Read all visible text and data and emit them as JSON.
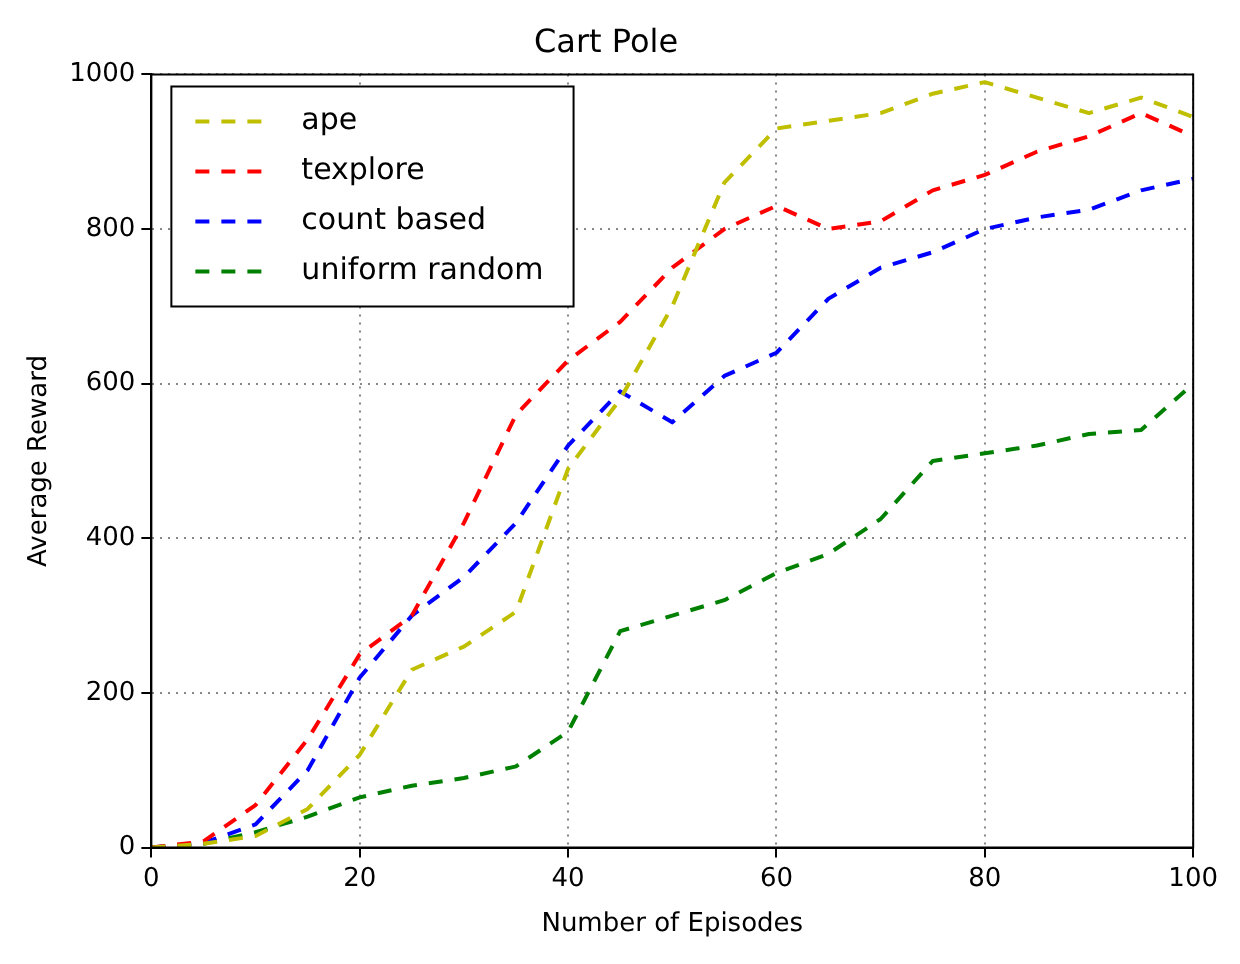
{
  "chart_data": {
    "type": "line",
    "title": "Cart Pole",
    "xlabel": "Number of Episodes",
    "ylabel": "Average Reward",
    "x": [
      0,
      5,
      10,
      15,
      20,
      25,
      30,
      35,
      40,
      45,
      50,
      55,
      60,
      65,
      70,
      75,
      80,
      85,
      90,
      95,
      100
    ],
    "series": [
      {
        "name": "ape",
        "color": "#bfbf00",
        "values": [
          0,
          5,
          15,
          50,
          120,
          230,
          260,
          305,
          490,
          580,
          700,
          860,
          930,
          940,
          950,
          975,
          990,
          970,
          950,
          970,
          945
        ]
      },
      {
        "name": "texplore",
        "color": "#ff0000",
        "values": [
          0,
          8,
          55,
          140,
          250,
          300,
          420,
          560,
          630,
          680,
          750,
          800,
          830,
          800,
          810,
          850,
          870,
          900,
          920,
          950,
          920
        ]
      },
      {
        "name": "count based",
        "color": "#0000ff",
        "values": [
          0,
          6,
          30,
          100,
          220,
          300,
          350,
          420,
          520,
          590,
          550,
          610,
          640,
          710,
          750,
          770,
          800,
          815,
          825,
          850,
          865
        ]
      },
      {
        "name": "uniform random",
        "color": "#008000",
        "values": [
          0,
          5,
          20,
          40,
          65,
          80,
          90,
          105,
          150,
          280,
          300,
          320,
          355,
          380,
          425,
          500,
          510,
          520,
          535,
          540,
          600
        ]
      }
    ],
    "xlim": [
      0,
      100
    ],
    "xticks": [
      0,
      20,
      40,
      60,
      80,
      100
    ],
    "ylim": [
      0,
      1000
    ],
    "yticks": [
      0,
      200,
      400,
      600,
      800,
      1000
    ],
    "grid": true,
    "legend": "top left",
    "line_style": "dashed",
    "marker": "none"
  }
}
